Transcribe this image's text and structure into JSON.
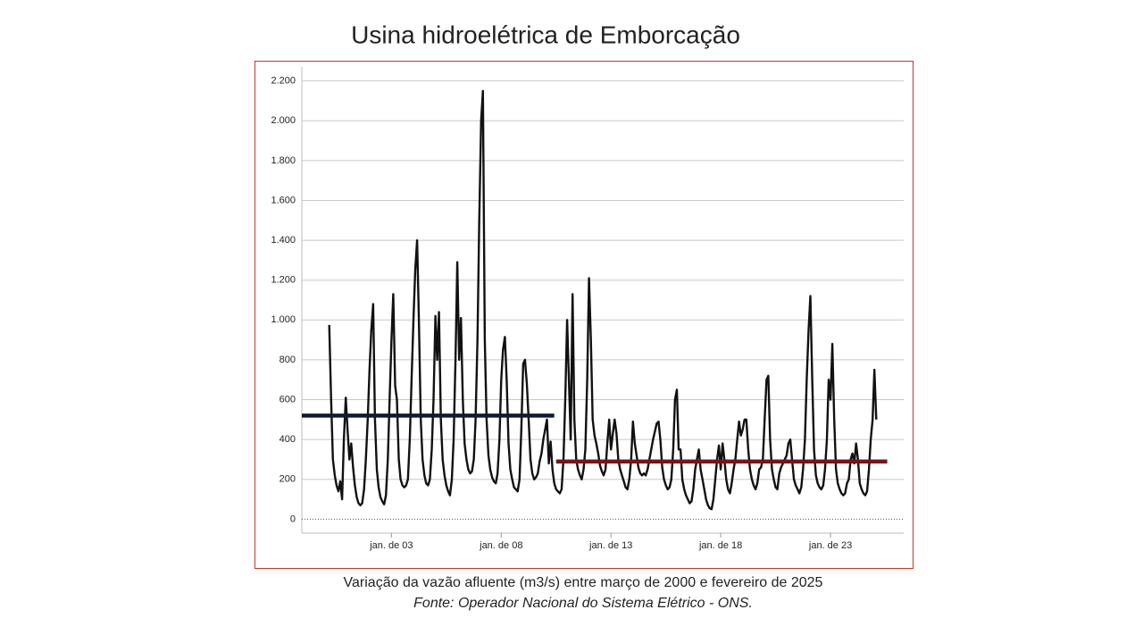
{
  "chart_data": {
    "type": "line",
    "title": "Usina hidroelétrica de Emborcação",
    "caption": "Variação da vazão afluente (m3/s) entre março de 2000 e fevereiro de 2025",
    "source": "Fonte: Operador Nacional do Sistema Elétrico - ONS.",
    "x": [
      "2000-03",
      "2000-04",
      "2000-05",
      "2000-06",
      "2000-07",
      "2000-08",
      "2000-09",
      "2000-10",
      "2000-11",
      "2000-12",
      "2001-01",
      "2001-02",
      "2001-03",
      "2001-04",
      "2001-05",
      "2001-06",
      "2001-07",
      "2001-08",
      "2001-09",
      "2001-10",
      "2001-11",
      "2001-12",
      "2002-01",
      "2002-02",
      "2002-03",
      "2002-04",
      "2002-05",
      "2002-06",
      "2002-07",
      "2002-08",
      "2002-09",
      "2002-10",
      "2002-11",
      "2002-12",
      "2003-01",
      "2003-02",
      "2003-03",
      "2003-04",
      "2003-05",
      "2003-06",
      "2003-07",
      "2003-08",
      "2003-09",
      "2003-10",
      "2003-11",
      "2003-12",
      "2004-01",
      "2004-02",
      "2004-03",
      "2004-04",
      "2004-05",
      "2004-06",
      "2004-07",
      "2004-08",
      "2004-09",
      "2004-10",
      "2004-11",
      "2004-12",
      "2005-01",
      "2005-02",
      "2005-03",
      "2005-04",
      "2005-05",
      "2005-06",
      "2005-07",
      "2005-08",
      "2005-09",
      "2005-10",
      "2005-11",
      "2005-12",
      "2006-01",
      "2006-02",
      "2006-03",
      "2006-04",
      "2006-05",
      "2006-06",
      "2006-07",
      "2006-08",
      "2006-09",
      "2006-10",
      "2006-11",
      "2006-12",
      "2007-01",
      "2007-02",
      "2007-03",
      "2007-04",
      "2007-05",
      "2007-06",
      "2007-07",
      "2007-08",
      "2007-09",
      "2007-10",
      "2007-11",
      "2007-12",
      "2008-01",
      "2008-02",
      "2008-03",
      "2008-04",
      "2008-05",
      "2008-06",
      "2008-07",
      "2008-08",
      "2008-09",
      "2008-10",
      "2008-11",
      "2008-12",
      "2009-01",
      "2009-02",
      "2009-03",
      "2009-04",
      "2009-05",
      "2009-06",
      "2009-07",
      "2009-08",
      "2009-09",
      "2009-10",
      "2009-11",
      "2009-12",
      "2010-01",
      "2010-02",
      "2010-03",
      "2010-04",
      "2010-05",
      "2010-06",
      "2010-07",
      "2010-08",
      "2010-09",
      "2010-10",
      "2010-11",
      "2010-12",
      "2011-01",
      "2011-02",
      "2011-03",
      "2011-04",
      "2011-05",
      "2011-06",
      "2011-07",
      "2011-08",
      "2011-09",
      "2011-10",
      "2011-11",
      "2011-12",
      "2012-01",
      "2012-02",
      "2012-03",
      "2012-04",
      "2012-05",
      "2012-06",
      "2012-07",
      "2012-08",
      "2012-09",
      "2012-10",
      "2012-11",
      "2012-12",
      "2013-01",
      "2013-02",
      "2013-03",
      "2013-04",
      "2013-05",
      "2013-06",
      "2013-07",
      "2013-08",
      "2013-09",
      "2013-10",
      "2013-11",
      "2013-12",
      "2014-01",
      "2014-02",
      "2014-03",
      "2014-04",
      "2014-05",
      "2014-06",
      "2014-07",
      "2014-08",
      "2014-09",
      "2014-10",
      "2014-11",
      "2014-12",
      "2015-01",
      "2015-02",
      "2015-03",
      "2015-04",
      "2015-05",
      "2015-06",
      "2015-07",
      "2015-08",
      "2015-09",
      "2015-10",
      "2015-11",
      "2015-12",
      "2016-01",
      "2016-02",
      "2016-03",
      "2016-04",
      "2016-05",
      "2016-06",
      "2016-07",
      "2016-08",
      "2016-09",
      "2016-10",
      "2016-11",
      "2016-12",
      "2017-01",
      "2017-02",
      "2017-03",
      "2017-04",
      "2017-05",
      "2017-06",
      "2017-07",
      "2017-08",
      "2017-09",
      "2017-10",
      "2017-11",
      "2017-12",
      "2018-01",
      "2018-02",
      "2018-03",
      "2018-04",
      "2018-05",
      "2018-06",
      "2018-07",
      "2018-08",
      "2018-09",
      "2018-10",
      "2018-11",
      "2018-12",
      "2019-01",
      "2019-02",
      "2019-03",
      "2019-04",
      "2019-05",
      "2019-06",
      "2019-07",
      "2019-08",
      "2019-09",
      "2019-10",
      "2019-11",
      "2019-12",
      "2020-01",
      "2020-02",
      "2020-03",
      "2020-04",
      "2020-05",
      "2020-06",
      "2020-07",
      "2020-08",
      "2020-09",
      "2020-10",
      "2020-11",
      "2020-12",
      "2021-01",
      "2021-02",
      "2021-03",
      "2021-04",
      "2021-05",
      "2021-06",
      "2021-07",
      "2021-08",
      "2021-09",
      "2021-10",
      "2021-11",
      "2021-12",
      "2022-01",
      "2022-02",
      "2022-03",
      "2022-04",
      "2022-05",
      "2022-06",
      "2022-07",
      "2022-08",
      "2022-09",
      "2022-10",
      "2022-11",
      "2022-12",
      "2023-01",
      "2023-02",
      "2023-03",
      "2023-04",
      "2023-05",
      "2023-06",
      "2023-07",
      "2023-08",
      "2023-09",
      "2023-10",
      "2023-11",
      "2023-12",
      "2024-01",
      "2024-02",
      "2024-03",
      "2024-04",
      "2024-05",
      "2024-06",
      "2024-07",
      "2024-08",
      "2024-09",
      "2024-10",
      "2024-11",
      "2024-12",
      "2025-01",
      "2025-02"
    ],
    "series": [
      {
        "color": "#111111",
        "values": [
          975,
          600,
          300,
          220,
          170,
          140,
          190,
          100,
          400,
          610,
          450,
          300,
          380,
          260,
          170,
          110,
          80,
          70,
          80,
          150,
          300,
          500,
          750,
          950,
          1080,
          500,
          250,
          160,
          110,
          90,
          75,
          120,
          300,
          600,
          900,
          1130,
          670,
          600,
          300,
          200,
          170,
          160,
          170,
          200,
          400,
          700,
          1000,
          1250,
          1400,
          1000,
          500,
          300,
          220,
          180,
          170,
          200,
          350,
          600,
          1020,
          800,
          1040,
          500,
          300,
          220,
          170,
          140,
          120,
          200,
          400,
          800,
          1290,
          800,
          1010,
          600,
          380,
          300,
          250,
          230,
          240,
          300,
          500,
          900,
          1500,
          2000,
          2150,
          900,
          500,
          320,
          250,
          210,
          190,
          180,
          230,
          400,
          700,
          850,
          915,
          700,
          380,
          250,
          200,
          160,
          150,
          140,
          200,
          450,
          780,
          800,
          680,
          500,
          300,
          230,
          200,
          210,
          230,
          290,
          330,
          400,
          450,
          500,
          280,
          390,
          250,
          180,
          150,
          140,
          130,
          150,
          300,
          600,
          1000,
          700,
          400,
          1130,
          500,
          300,
          250,
          220,
          200,
          250,
          350,
          700,
          1210,
          900,
          500,
          420,
          380,
          330,
          270,
          240,
          220,
          250,
          380,
          500,
          350,
          430,
          500,
          430,
          300,
          250,
          220,
          190,
          160,
          150,
          200,
          300,
          490,
          380,
          320,
          260,
          230,
          220,
          230,
          220,
          250,
          300,
          350,
          400,
          440,
          480,
          490,
          400,
          260,
          200,
          170,
          150,
          160,
          200,
          350,
          600,
          650,
          350,
          350,
          200,
          150,
          120,
          100,
          80,
          90,
          150,
          250,
          300,
          350,
          250,
          200,
          150,
          100,
          70,
          55,
          50,
          100,
          200,
          300,
          370,
          250,
          380,
          300,
          200,
          150,
          130,
          180,
          250,
          300,
          400,
          490,
          420,
          450,
          500,
          500,
          350,
          250,
          200,
          170,
          150,
          180,
          250,
          260,
          300,
          500,
          700,
          720,
          400,
          250,
          200,
          160,
          150,
          230,
          260,
          280,
          300,
          320,
          380,
          400,
          300,
          200,
          170,
          150,
          130,
          160,
          250,
          400,
          700,
          950,
          1120,
          700,
          350,
          220,
          180,
          160,
          150,
          170,
          250,
          400,
          700,
          600,
          880,
          500,
          250,
          180,
          150,
          130,
          120,
          130,
          180,
          200,
          300,
          330,
          280,
          380,
          300,
          180,
          150,
          130,
          120,
          140,
          250,
          400,
          500,
          750,
          500
        ]
      }
    ],
    "mean_lines": [
      {
        "color": "#0d1a3a",
        "value": 520,
        "x": [
          "1998-12",
          "2010-06"
        ]
      },
      {
        "color": "#7a1414",
        "value": 290,
        "x": [
          "2010-07",
          "2025-08"
        ]
      }
    ],
    "xlim": [
      "1998-12",
      "2026-05"
    ],
    "xticks": [
      {
        "value": "2003-01",
        "label": "jan. de 03"
      },
      {
        "value": "2008-01",
        "label": "jan. de 08"
      },
      {
        "value": "2013-01",
        "label": "jan. de 13"
      },
      {
        "value": "2018-01",
        "label": "jan. de 18"
      },
      {
        "value": "2023-01",
        "label": "jan. de 23"
      }
    ],
    "ylim": [
      -70,
      2270
    ],
    "yticks": [
      0,
      200,
      400,
      600,
      800,
      {
        "value": 1000,
        "label": "1.000"
      },
      {
        "value": 1200,
        "label": "1.200"
      },
      {
        "value": 1400,
        "label": "1.400"
      },
      {
        "value": 1600,
        "label": "1.600"
      },
      {
        "value": 1800,
        "label": "1.800"
      },
      {
        "value": 2000,
        "label": "2.000"
      },
      {
        "value": 2200,
        "label": "2.200"
      }
    ],
    "grid": true
  }
}
